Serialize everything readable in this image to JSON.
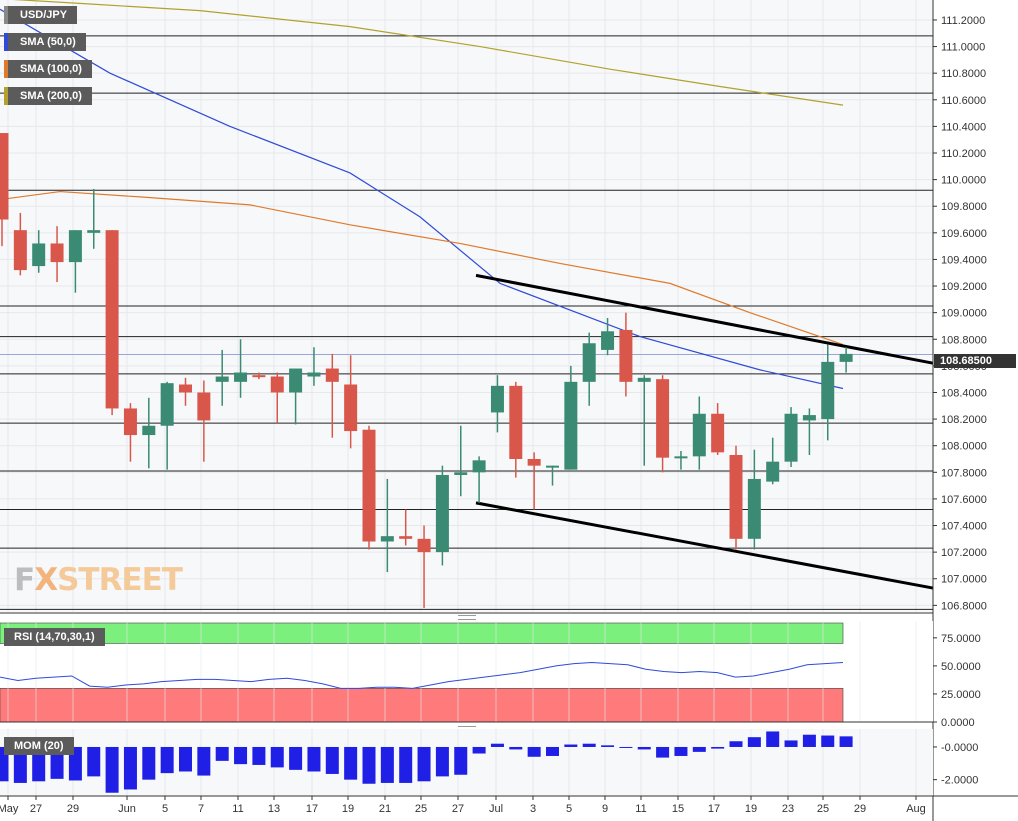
{
  "instrument": "USD/JPY",
  "legend": {
    "sma50": "SMA (50,0)",
    "sma100": "SMA (100,0)",
    "sma200": "SMA (200,0)",
    "sma50_color": "#2f4bd8",
    "sma100_color": "#e07a2b",
    "sma200_color": "#b2a22c"
  },
  "current_price_label": "108.68500",
  "watermark": {
    "fx": "F",
    "x": "X",
    "street": "STREET"
  },
  "colors": {
    "up": "#3a8a74",
    "down": "#d9574a",
    "rsi_overbought": "#7cf07c",
    "rsi_oversold": "#ff7b7b",
    "momentum": "#1f1fe6"
  },
  "rsi_label": "RSI (14,70,30,1)",
  "mom_label": "MOM (20)",
  "chart_data": {
    "type": "candlestick",
    "price_axis": {
      "ylim": [
        106.75,
        111.35
      ],
      "ticks": [
        "111.2000",
        "111.0000",
        "110.8000",
        "110.6000",
        "110.4000",
        "110.2000",
        "110.0000",
        "109.8000",
        "109.6000",
        "109.4000",
        "109.2000",
        "109.0000",
        "108.8000",
        "108.6000",
        "108.4000",
        "108.2000",
        "108.0000",
        "107.8000",
        "107.6000",
        "107.4000",
        "107.2000",
        "107.0000",
        "106.8000"
      ]
    },
    "x_ticks": [
      "May",
      "27",
      "29",
      "Jun",
      "5",
      "7",
      "11",
      "13",
      "17",
      "19",
      "21",
      "25",
      "27",
      "Jul",
      "3",
      "5",
      "9",
      "11",
      "15",
      "17",
      "19",
      "23",
      "25",
      "29",
      "Aug"
    ],
    "candles": [
      {
        "o": 110.35,
        "h": 110.35,
        "l": 109.5,
        "c": 109.7
      },
      {
        "o": 109.62,
        "h": 109.75,
        "l": 109.28,
        "c": 109.32
      },
      {
        "o": 109.35,
        "h": 109.62,
        "l": 109.3,
        "c": 109.52
      },
      {
        "o": 109.52,
        "h": 109.65,
        "l": 109.23,
        "c": 109.38
      },
      {
        "o": 109.38,
        "h": 109.62,
        "l": 109.15,
        "c": 109.62
      },
      {
        "o": 109.6,
        "h": 109.93,
        "l": 109.48,
        "c": 109.62
      },
      {
        "o": 109.62,
        "h": 109.62,
        "l": 108.23,
        "c": 108.28
      },
      {
        "o": 108.28,
        "h": 108.32,
        "l": 107.88,
        "c": 108.08
      },
      {
        "o": 108.08,
        "h": 108.36,
        "l": 107.83,
        "c": 108.15
      },
      {
        "o": 108.15,
        "h": 108.48,
        "l": 107.82,
        "c": 108.47
      },
      {
        "o": 108.46,
        "h": 108.51,
        "l": 108.3,
        "c": 108.4
      },
      {
        "o": 108.4,
        "h": 108.49,
        "l": 107.88,
        "c": 108.19
      },
      {
        "o": 108.48,
        "h": 108.72,
        "l": 108.3,
        "c": 108.52
      },
      {
        "o": 108.48,
        "h": 108.8,
        "l": 108.36,
        "c": 108.55
      },
      {
        "o": 108.53,
        "h": 108.55,
        "l": 108.5,
        "c": 108.52
      },
      {
        "o": 108.52,
        "h": 108.55,
        "l": 108.17,
        "c": 108.4
      },
      {
        "o": 108.4,
        "h": 108.58,
        "l": 108.16,
        "c": 108.58
      },
      {
        "o": 108.52,
        "h": 108.74,
        "l": 108.45,
        "c": 108.55
      },
      {
        "o": 108.58,
        "h": 108.69,
        "l": 108.06,
        "c": 108.48
      },
      {
        "o": 108.46,
        "h": 108.68,
        "l": 107.98,
        "c": 108.11
      },
      {
        "o": 108.12,
        "h": 108.15,
        "l": 107.22,
        "c": 107.28
      },
      {
        "o": 107.28,
        "h": 107.75,
        "l": 107.05,
        "c": 107.32
      },
      {
        "o": 107.32,
        "h": 107.52,
        "l": 107.25,
        "c": 107.3
      },
      {
        "o": 107.3,
        "h": 107.4,
        "l": 106.78,
        "c": 107.2
      },
      {
        "o": 107.2,
        "h": 107.85,
        "l": 107.1,
        "c": 107.78
      },
      {
        "o": 107.78,
        "h": 108.15,
        "l": 107.62,
        "c": 107.8
      },
      {
        "o": 107.8,
        "h": 107.92,
        "l": 107.57,
        "c": 107.89
      },
      {
        "o": 108.25,
        "h": 108.53,
        "l": 108.1,
        "c": 108.45
      },
      {
        "o": 108.45,
        "h": 108.48,
        "l": 107.76,
        "c": 107.9
      },
      {
        "o": 107.9,
        "h": 107.95,
        "l": 107.52,
        "c": 107.85
      },
      {
        "o": 107.85,
        "h": 107.85,
        "l": 107.7,
        "c": 107.85
      },
      {
        "o": 107.82,
        "h": 108.6,
        "l": 107.82,
        "c": 108.48
      },
      {
        "o": 108.48,
        "h": 108.85,
        "l": 108.3,
        "c": 108.77
      },
      {
        "o": 108.72,
        "h": 108.96,
        "l": 108.68,
        "c": 108.86
      },
      {
        "o": 108.87,
        "h": 109.0,
        "l": 108.37,
        "c": 108.48
      },
      {
        "o": 108.48,
        "h": 108.53,
        "l": 107.85,
        "c": 108.51
      },
      {
        "o": 108.5,
        "h": 108.53,
        "l": 107.8,
        "c": 107.91
      },
      {
        "o": 107.92,
        "h": 107.96,
        "l": 107.82,
        "c": 107.92
      },
      {
        "o": 107.92,
        "h": 108.37,
        "l": 107.82,
        "c": 108.24
      },
      {
        "o": 108.24,
        "h": 108.32,
        "l": 107.93,
        "c": 107.95
      },
      {
        "o": 107.93,
        "h": 108.0,
        "l": 107.22,
        "c": 107.3
      },
      {
        "o": 107.3,
        "h": 107.97,
        "l": 107.22,
        "c": 107.75
      },
      {
        "o": 107.73,
        "h": 108.06,
        "l": 107.71,
        "c": 107.88
      },
      {
        "o": 107.88,
        "h": 108.29,
        "l": 107.84,
        "c": 108.24
      },
      {
        "o": 108.19,
        "h": 108.28,
        "l": 107.93,
        "c": 108.23
      },
      {
        "o": 108.2,
        "h": 108.76,
        "l": 108.04,
        "c": 108.63
      },
      {
        "o": 108.63,
        "h": 108.74,
        "l": 108.55,
        "c": 108.69
      }
    ],
    "sma50": [
      111.28,
      110.8,
      110.4,
      110.05,
      109.72,
      109.22,
      108.82,
      108.57,
      108.43
    ],
    "sma100": [
      109.85,
      109.91,
      109.87,
      109.81,
      109.66,
      109.52,
      109.37,
      109.22,
      109.0,
      108.76
    ],
    "sma200": [
      111.36,
      111.32,
      111.27,
      111.15,
      111.0,
      110.83,
      110.7,
      110.56
    ],
    "horizontal_levels": [
      111.08,
      110.65,
      109.92,
      109.05,
      108.82,
      108.54,
      108.17,
      107.81,
      107.52,
      107.23,
      106.77
    ],
    "trendlines": [
      {
        "from": {
          "x": "Jul 1",
          "y": 109.28
        },
        "to": {
          "x": "Aug",
          "y": 108.62
        }
      },
      {
        "from": {
          "x": "Jul 1",
          "y": 107.57
        },
        "to": {
          "x": "Aug",
          "y": 106.93
        }
      }
    ],
    "rsi": {
      "ticks": [
        "75.0000",
        "50.0000",
        "25.0000",
        "0.0000"
      ],
      "ylim": [
        0,
        90
      ],
      "overbought": 70,
      "oversold": 30,
      "values": [
        40,
        37,
        39,
        40,
        41,
        32,
        31,
        33,
        34,
        36,
        37,
        38,
        38,
        37,
        36,
        38,
        39,
        37,
        34,
        30,
        30,
        31,
        31,
        30,
        33,
        36,
        38,
        40,
        42,
        44,
        47,
        50,
        52,
        53,
        52,
        51,
        47,
        45,
        44,
        45,
        44,
        40,
        41,
        44,
        47,
        51,
        52,
        53
      ]
    },
    "momentum": {
      "ticks": [
        "-0.0000",
        "-2.0000"
      ],
      "ylim": [
        -3.0,
        1.1
      ],
      "values": [
        -2.1,
        -2.2,
        -2.1,
        -1.95,
        -2.05,
        -1.8,
        -2.8,
        -2.6,
        -2.0,
        -1.6,
        -1.5,
        -1.75,
        -0.85,
        -1.05,
        -1.1,
        -1.25,
        -1.4,
        -1.5,
        -1.65,
        -2.0,
        -2.25,
        -2.2,
        -2.2,
        -2.1,
        -1.8,
        -1.7,
        -0.4,
        0.2,
        -0.15,
        -0.6,
        -0.55,
        0.15,
        0.2,
        0.1,
        -0.05,
        -0.15,
        -0.65,
        -0.55,
        -0.3,
        -0.1,
        0.35,
        0.6,
        0.95,
        0.4,
        0.75,
        0.7,
        0.65
      ]
    }
  }
}
